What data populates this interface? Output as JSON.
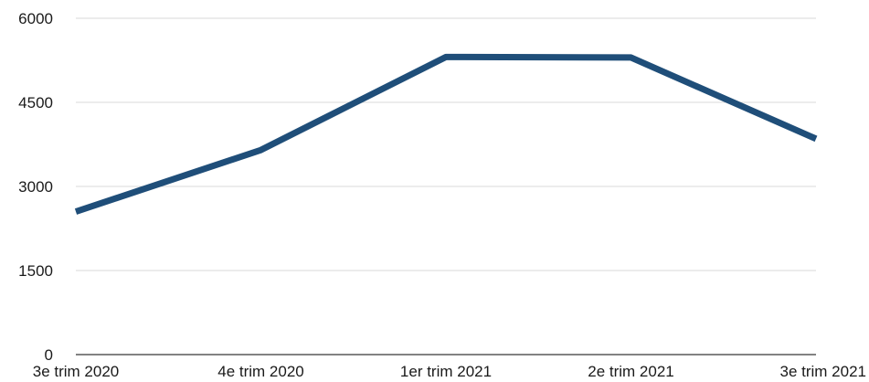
{
  "chart_data": {
    "type": "line",
    "title": "",
    "xlabel": "",
    "ylabel": "",
    "categories": [
      "3e trim 2020",
      "4e trim 2020",
      "1er trim 2021",
      "2e trim 2021",
      "3e trim 2021"
    ],
    "series": [
      {
        "values": [
          2550,
          3650,
          5310,
          5300,
          3850
        ]
      }
    ],
    "ylim": [
      0,
      6000
    ],
    "yticks": [
      0,
      1500,
      3000,
      4500,
      6000
    ],
    "ytick_labels": [
      "0",
      "1500",
      "3000",
      "4500",
      "6000"
    ],
    "grid": true,
    "legend": "none",
    "colors": {
      "line": "#1f4e79",
      "grid": "#d9d9d9",
      "axis": "#595959",
      "text": "#1a1a1a"
    }
  }
}
